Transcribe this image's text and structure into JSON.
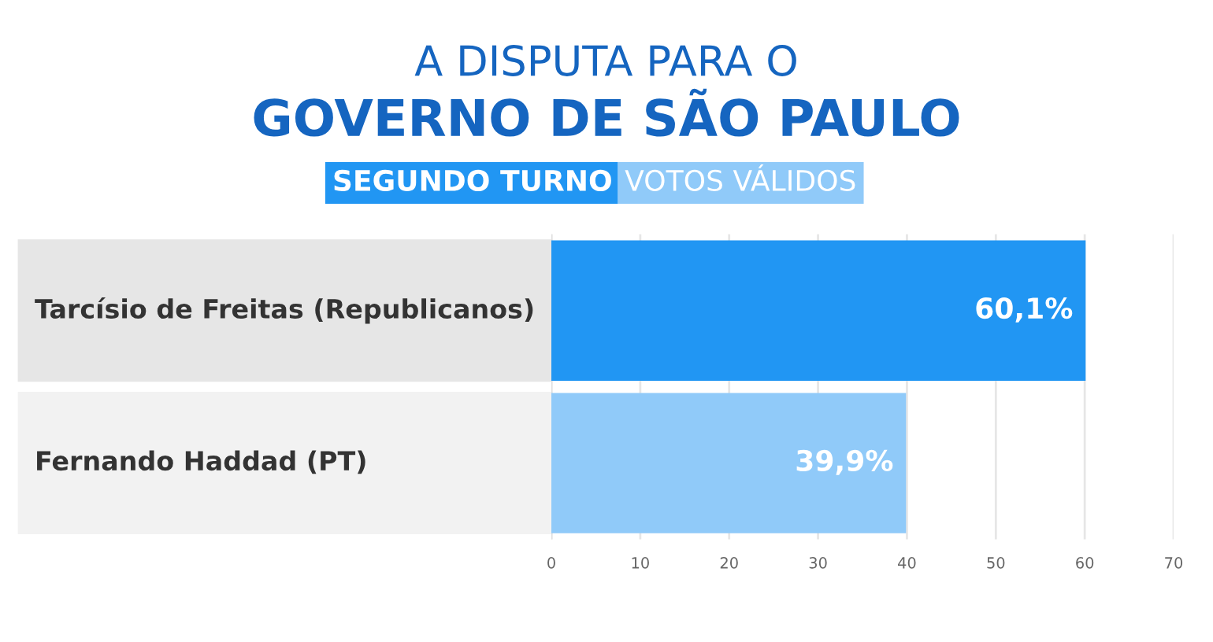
{
  "chart_data": {
    "type": "bar",
    "orientation": "horizontal",
    "title": "A DISPUTA PARA O",
    "subtitle": "GOVERNO DE SÃO PAULO",
    "annotations": [
      "SEGUNDO TURNO",
      "VOTOS VÁLIDOS"
    ],
    "categories": [
      "Tarcísio de Freitas (Republicanos)",
      "Fernando Haddad (PT)"
    ],
    "values": [
      60.1,
      39.9
    ],
    "value_labels": [
      "60,1%",
      "39,9%"
    ],
    "colors": [
      "#2196f3",
      "#90caf9"
    ],
    "xlim": [
      0,
      70
    ],
    "xticks": [
      0,
      10,
      20,
      30,
      40,
      50,
      60,
      70
    ],
    "grid": "x",
    "tick_labels": "x"
  }
}
